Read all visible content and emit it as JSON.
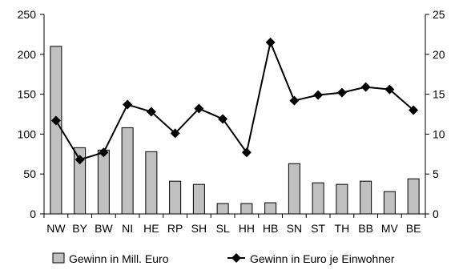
{
  "chart_data": {
    "type": "bar+line",
    "categories": [
      "NW",
      "BY",
      "BW",
      "NI",
      "HE",
      "RP",
      "SH",
      "SL",
      "HH",
      "HB",
      "SN",
      "ST",
      "TH",
      "BB",
      "MV",
      "BE"
    ],
    "series": [
      {
        "name": "Gewinn in Mill. Euro",
        "type": "bar",
        "axis": "left",
        "color": "#c0c0c0",
        "values": [
          210,
          83,
          80,
          108,
          78,
          41,
          37,
          13,
          13,
          14,
          63,
          39,
          37,
          41,
          28,
          44
        ]
      },
      {
        "name": "Gewinn in Euro je Einwohner",
        "type": "line",
        "axis": "right",
        "color": "#000000",
        "marker": "diamond",
        "values": [
          11.7,
          6.8,
          7.7,
          13.7,
          12.8,
          10.1,
          13.2,
          11.9,
          7.7,
          21.5,
          14.2,
          14.9,
          15.2,
          15.9,
          15.6,
          13.0
        ]
      }
    ],
    "y_left": {
      "min": 0,
      "max": 250,
      "ticks": [
        0,
        50,
        100,
        150,
        200,
        250
      ]
    },
    "y_right": {
      "min": 0,
      "max": 25,
      "ticks": [
        0,
        5,
        10,
        15,
        20,
        25
      ]
    },
    "grid": false,
    "legend": "bottom"
  }
}
